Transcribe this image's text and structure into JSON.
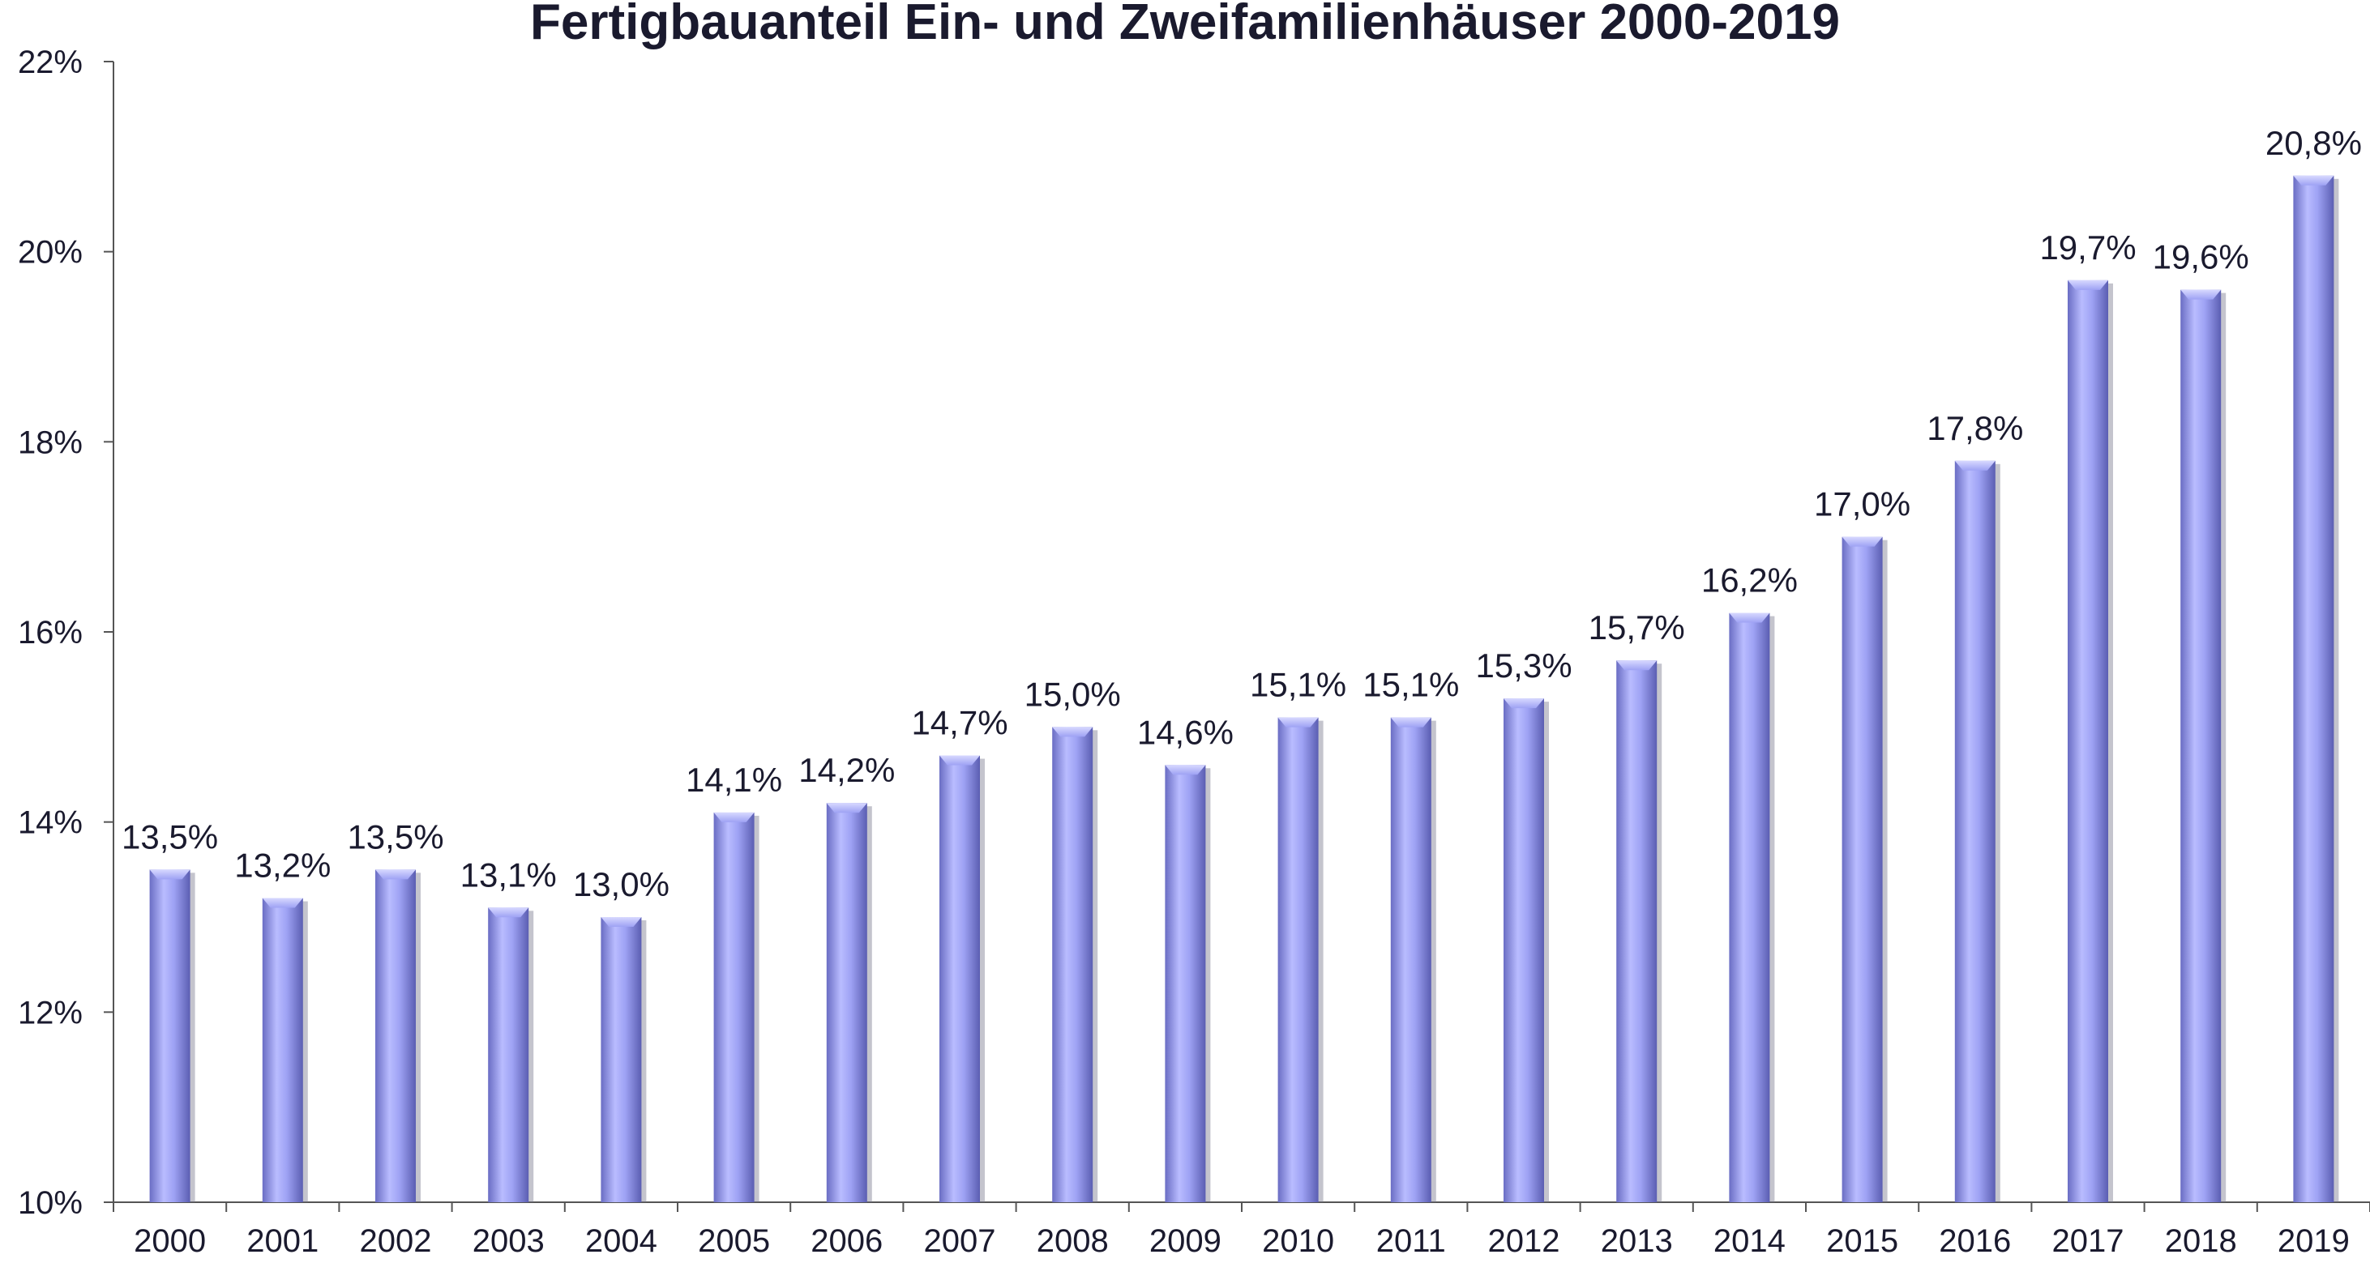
{
  "chart_data": {
    "type": "bar",
    "title": "Fertigbauanteil Ein- und Zweifamilienhäuser 2000-2019",
    "xlabel": "",
    "ylabel": "",
    "categories": [
      "2000",
      "2001",
      "2002",
      "2003",
      "2004",
      "2005",
      "2006",
      "2007",
      "2008",
      "2009",
      "2010",
      "2011",
      "2012",
      "2013",
      "2014",
      "2015",
      "2016",
      "2017",
      "2018",
      "2019"
    ],
    "values": [
      13.5,
      13.2,
      13.5,
      13.1,
      13.0,
      14.1,
      14.2,
      14.7,
      15.0,
      14.6,
      15.1,
      15.1,
      15.3,
      15.7,
      16.2,
      17.0,
      17.8,
      19.7,
      19.6,
      20.8
    ],
    "data_labels": [
      "13,5%",
      "13,2%",
      "13,5%",
      "13,1%",
      "13,0%",
      "14,1%",
      "14,2%",
      "14,7%",
      "15,0%",
      "14,6%",
      "15,1%",
      "15,1%",
      "15,3%",
      "15,7%",
      "16,2%",
      "17,0%",
      "17,8%",
      "19,7%",
      "19,6%",
      "20,8%"
    ],
    "ylim": [
      10,
      22
    ],
    "y_ticks": [
      10,
      12,
      14,
      16,
      18,
      20,
      22
    ],
    "y_tick_labels": [
      "10%",
      "12%",
      "14%",
      "16%",
      "18%",
      "20%",
      "22%"
    ],
    "grid": false,
    "legend": "none",
    "colors": {
      "bar": "#9fa3f5",
      "bar_dark": "#5f62b8",
      "bar_light": "#c9cbff",
      "text": "#1a1a2e",
      "axis": "#555555"
    }
  }
}
